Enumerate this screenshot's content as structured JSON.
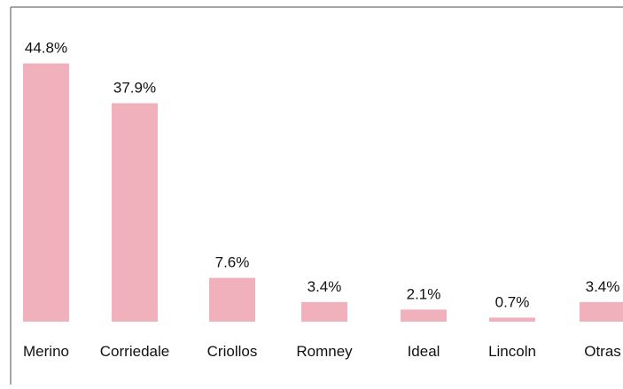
{
  "chart_data": {
    "type": "bar",
    "categories": [
      "Merino",
      "Corriedale",
      "Criollos",
      "Romney",
      "Ideal",
      "Lincoln",
      "Otras"
    ],
    "values": [
      44.8,
      37.9,
      7.6,
      3.4,
      2.1,
      0.7,
      3.4
    ],
    "value_labels": [
      "44.8%",
      "37.9%",
      "7.6%",
      "3.4%",
      "2.1%",
      "0.7%",
      "3.4%"
    ],
    "title": "",
    "xlabel": "",
    "ylabel": "",
    "ylim": [
      0,
      45.5
    ],
    "grid": false,
    "legend": "none",
    "bar_color": "#f0b1bd",
    "frame_color": "#888888"
  }
}
